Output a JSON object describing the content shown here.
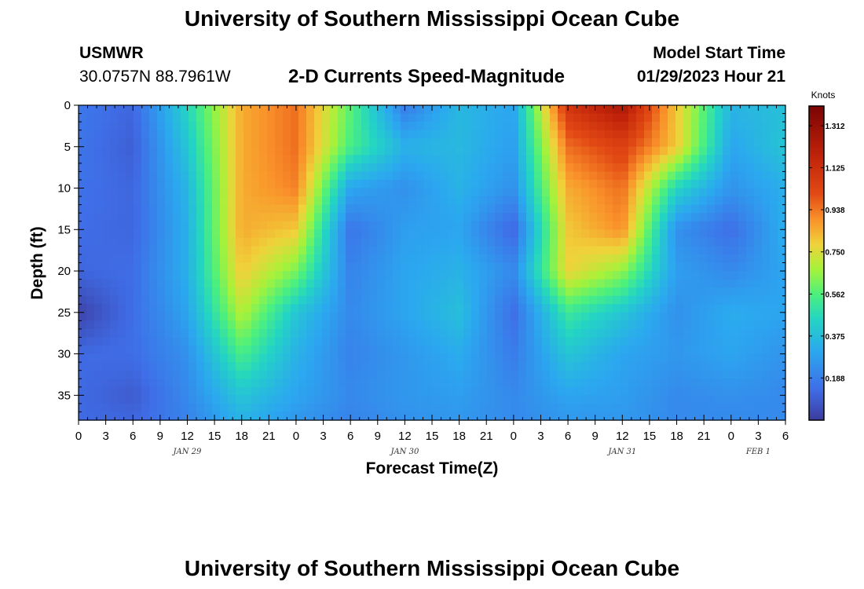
{
  "header": {
    "title": "University of Southern Mississippi Ocean Cube",
    "station": "USMWR",
    "location": "30.0757N  88.7961W",
    "subtitle": "2-D Currents Speed-Magnitude",
    "model_label": "Model Start Time",
    "model_time": "01/29/2023 Hour 21"
  },
  "footer": {
    "title": "University of Southern Mississippi Ocean Cube"
  },
  "chart_data": {
    "type": "heatmap",
    "title": "2-D Currents Speed-Magnitude",
    "xlabel": "Forecast Time(Z)",
    "ylabel": "Depth (ft)",
    "x_tick_labels": [
      "0",
      "3",
      "6",
      "9",
      "12",
      "15",
      "18",
      "21",
      "0",
      "3",
      "6",
      "9",
      "12",
      "15",
      "18",
      "21",
      "0",
      "3",
      "6",
      "9",
      "12",
      "15",
      "18",
      "21",
      "0",
      "3",
      "6"
    ],
    "date_labels": [
      {
        "label": "JAN 29",
        "tick_index": 4
      },
      {
        "label": "JAN 30",
        "tick_index": 12
      },
      {
        "label": "JAN 31",
        "tick_index": 20
      },
      {
        "label": "FEB 1",
        "tick_index": 25
      }
    ],
    "y_ticks": [
      0,
      5,
      10,
      15,
      20,
      25,
      30,
      35
    ],
    "ylim": [
      0,
      38
    ],
    "y_inverted": true,
    "colorbar": {
      "unit": "Knots",
      "min": 0,
      "max": 1.4,
      "ticks": [
        "0.188",
        "0.375",
        "0.562",
        "0.750",
        "0.938",
        "1.125",
        "1.312"
      ]
    },
    "time_hours": [
      0,
      6,
      12,
      18,
      24,
      30,
      36,
      42,
      48,
      54,
      60,
      66,
      72,
      78
    ],
    "depth_ft": [
      0,
      5,
      10,
      15,
      20,
      25,
      30,
      35,
      38
    ],
    "speed_knots": [
      [
        0.17,
        0.12,
        0.45,
        0.85,
        0.95,
        0.58,
        0.18,
        0.36,
        0.3,
        1.1,
        1.25,
        0.8,
        0.35,
        0.38
      ],
      [
        0.16,
        0.1,
        0.4,
        0.85,
        0.95,
        0.55,
        0.34,
        0.36,
        0.28,
        0.95,
        1.05,
        0.8,
        0.3,
        0.4
      ],
      [
        0.15,
        0.12,
        0.35,
        0.85,
        0.92,
        0.3,
        0.24,
        0.34,
        0.24,
        0.85,
        0.95,
        0.45,
        0.25,
        0.33
      ],
      [
        0.14,
        0.12,
        0.33,
        0.85,
        0.8,
        0.16,
        0.28,
        0.3,
        0.12,
        0.8,
        0.9,
        0.24,
        0.14,
        0.33
      ],
      [
        0.12,
        0.14,
        0.33,
        0.8,
        0.62,
        0.2,
        0.3,
        0.34,
        0.22,
        0.78,
        0.65,
        0.28,
        0.22,
        0.3
      ],
      [
        0.02,
        0.14,
        0.3,
        0.7,
        0.4,
        0.22,
        0.3,
        0.38,
        0.14,
        0.52,
        0.4,
        0.24,
        0.32,
        0.3
      ],
      [
        0.13,
        0.14,
        0.24,
        0.55,
        0.34,
        0.2,
        0.26,
        0.32,
        0.18,
        0.4,
        0.3,
        0.26,
        0.3,
        0.25
      ],
      [
        0.13,
        0.09,
        0.22,
        0.4,
        0.3,
        0.22,
        0.26,
        0.28,
        0.22,
        0.3,
        0.28,
        0.22,
        0.24,
        0.22
      ],
      [
        0.13,
        0.12,
        0.2,
        0.34,
        0.26,
        0.2,
        0.24,
        0.26,
        0.22,
        0.26,
        0.26,
        0.22,
        0.22,
        0.22
      ]
    ]
  }
}
